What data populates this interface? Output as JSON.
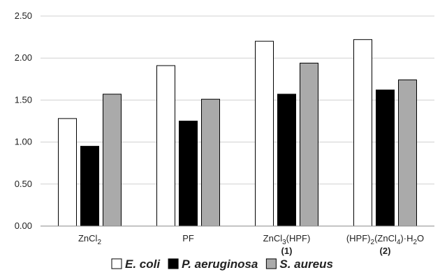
{
  "chart_data": {
    "type": "bar",
    "categories": [
      {
        "label": "ZnCl",
        "sub": "2",
        "tail": "",
        "number": ""
      },
      {
        "label": "PF",
        "sub": "",
        "tail": "",
        "number": ""
      },
      {
        "label": "ZnCl",
        "sub": "3",
        "tail": "(HPF)",
        "number": "(1)"
      },
      {
        "label": "(HPF)",
        "sub": "2",
        "tail": "(ZnCl",
        "sub2": "4",
        "tail2": ")·H",
        "sub3": "2",
        "tail3": "O",
        "number": "(2)"
      }
    ],
    "series": [
      {
        "name": "E. coli",
        "color": "#ffffff",
        "values": [
          1.28,
          1.91,
          2.2,
          2.22
        ]
      },
      {
        "name": "P. aeruginosa",
        "color": "#000000",
        "values": [
          0.95,
          1.25,
          1.57,
          1.62
        ]
      },
      {
        "name": "S. aureus",
        "color": "#aaaaaa",
        "values": [
          1.57,
          1.51,
          1.94,
          1.74
        ]
      }
    ],
    "ylim": [
      0,
      2.5
    ],
    "yticks": [
      "0.00",
      "0.50",
      "1.00",
      "1.50",
      "2.00",
      "2.50"
    ],
    "grid": true,
    "legend": "bottom"
  }
}
